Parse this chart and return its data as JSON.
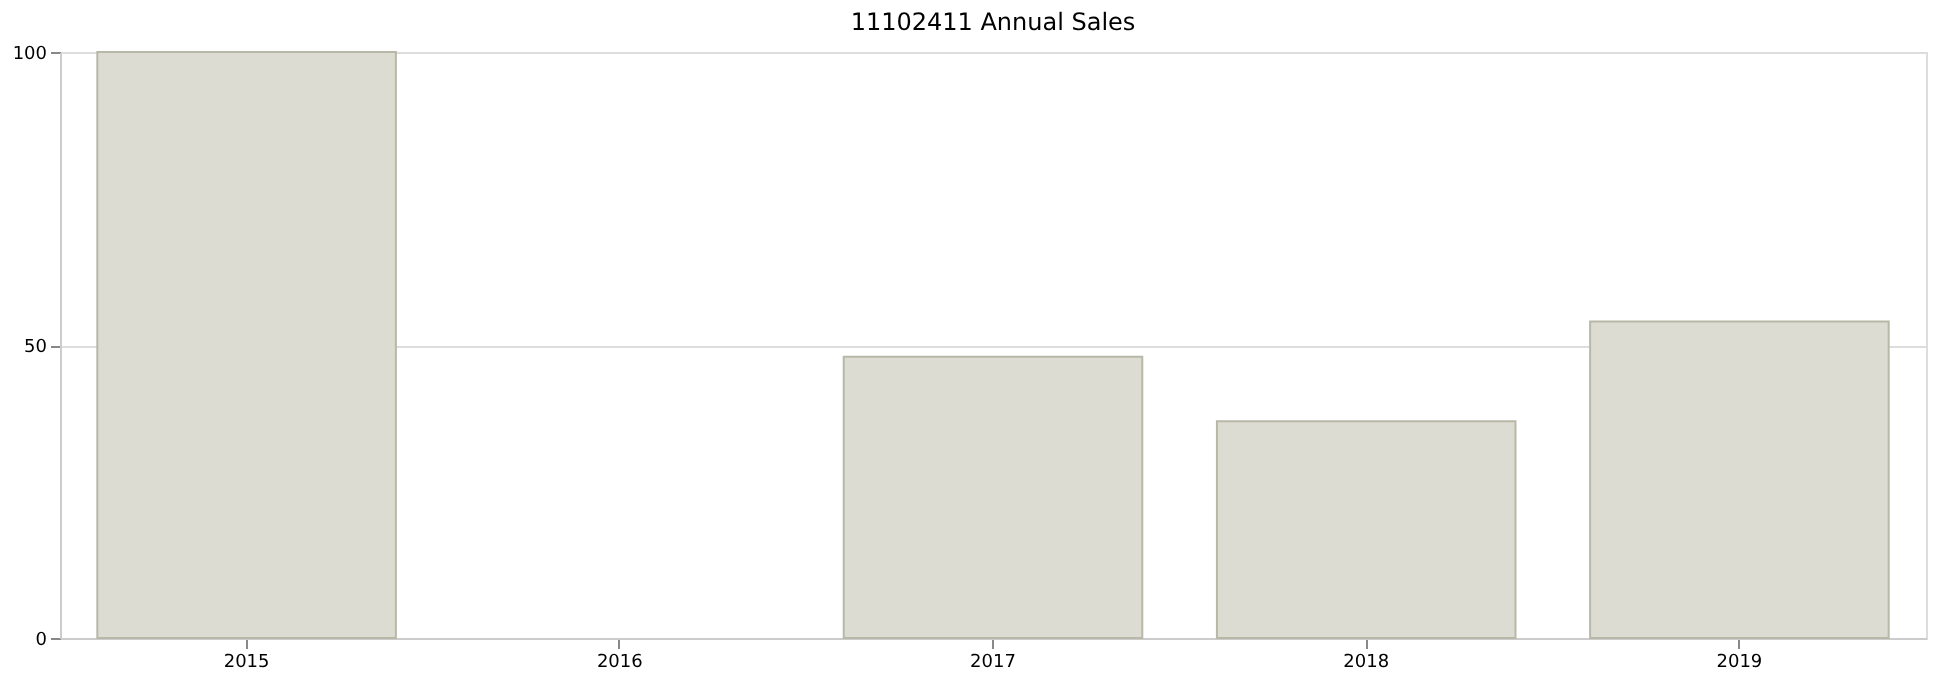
{
  "chart_data": {
    "type": "bar",
    "title": "11102411 Annual Sales",
    "categories": [
      "2015",
      "2016",
      "2017",
      "2018",
      "2019"
    ],
    "values": [
      100,
      0,
      48,
      37,
      54
    ],
    "color": "#dcdcd2",
    "ylim": [
      0,
      100
    ],
    "yticks": [
      0,
      50,
      100
    ],
    "grid": "y"
  }
}
